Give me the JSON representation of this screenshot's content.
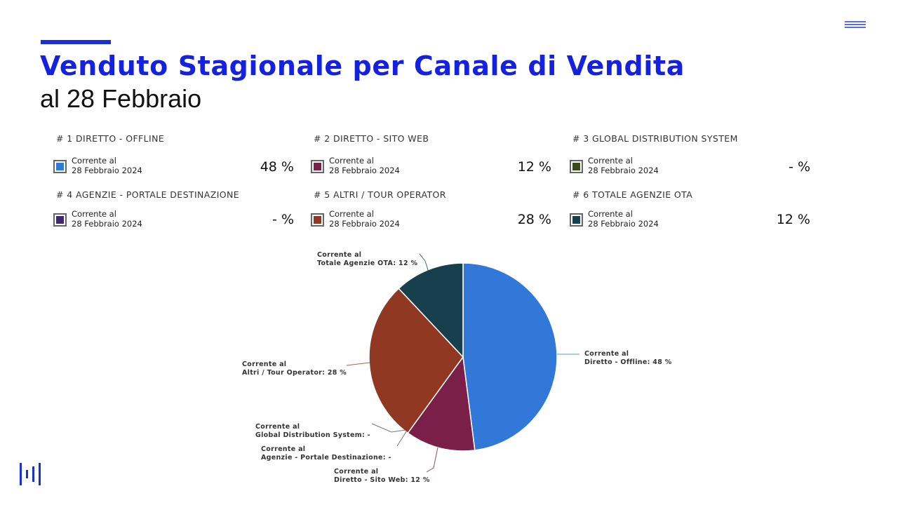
{
  "colors": {
    "accent": "#1a2fd6",
    "title": "#1422e0",
    "slices": {
      "diretto_offline": "#3178d8",
      "diretto_sito_web": "#7a1f48",
      "global_distribution": "#3a4a1c",
      "agenzie_portale": "#3d2a6e",
      "altri_tour_operator": "#913822",
      "totale_agenzie_ota": "#183f4c"
    }
  },
  "header": {
    "title": "Venduto Stagionale per Canale di Vendita",
    "subtitle": "al 28 Febbraio"
  },
  "legend": [
    {
      "title": "# 1 DIRETTO - OFFLINE",
      "line1": "Corrente al",
      "line2": "28 Febbraio 2024",
      "value": "48 %",
      "color": "#3178d8"
    },
    {
      "title": "# 2 DIRETTO - SITO WEB",
      "line1": "Corrente al",
      "line2": "28 Febbraio 2024",
      "value": "12 %",
      "color": "#7a1f48"
    },
    {
      "title": "# 3 GLOBAL DISTRIBUTION SYSTEM",
      "line1": "Corrente al",
      "line2": "28 Febbraio 2024",
      "value": "- %",
      "color": "#3a4a1c"
    },
    {
      "title": "# 4 AGENZIE - PORTALE DESTINAZIONE",
      "line1": "Corrente al",
      "line2": "28 Febbraio 2024",
      "value": "- %",
      "color": "#3d2a6e"
    },
    {
      "title": "# 5 ALTRI / TOUR OPERATOR",
      "line1": "Corrente al",
      "line2": "28 Febbraio 2024",
      "value": "28 %",
      "color": "#913822"
    },
    {
      "title": "# 6 TOTALE AGENZIE OTA",
      "line1": "Corrente al",
      "line2": "28 Febbraio 2024",
      "value": "12 %",
      "color": "#183f4c"
    }
  ],
  "chart_data": {
    "type": "pie",
    "title": "",
    "slices": [
      {
        "key": "diretto_offline",
        "value": 48,
        "color": "#3178d8",
        "label_line1": "Corrente al",
        "label_line2": "Diretto - Offline: 48 %"
      },
      {
        "key": "diretto_sito_web",
        "value": 12,
        "color": "#7a1f48",
        "label_line1": "Corrente al",
        "label_line2": "Diretto - Sito Web: 12 %"
      },
      {
        "key": "agenzie_portale",
        "value": 0,
        "color": "#3d2a6e",
        "label_line1": "Corrente al",
        "label_line2": "Agenzie - Portale Destinazione: -"
      },
      {
        "key": "global_distribution",
        "value": 0,
        "color": "#3a4a1c",
        "label_line1": "Corrente al",
        "label_line2": "Global Distribution System: -"
      },
      {
        "key": "altri_tour_operator",
        "value": 28,
        "color": "#913822",
        "label_line1": "Corrente al",
        "label_line2": "Altri / Tour Operator: 28 %"
      },
      {
        "key": "totale_agenzie_ota",
        "value": 12,
        "color": "#183f4c",
        "label_line1": "Corrente al",
        "label_line2": "Totale Agenzie OTA: 12 %"
      }
    ]
  },
  "icons": {
    "menu": "hamburger-menu-icon",
    "logo": "brand-logo-icon"
  }
}
